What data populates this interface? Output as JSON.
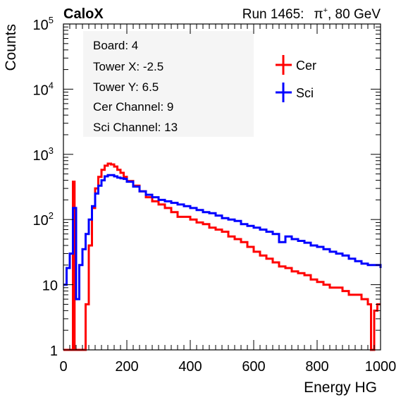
{
  "header": {
    "left": "CaloX",
    "run": "Run 1465:",
    "particle": "π",
    "charge": "+",
    "energy": ", 80 GeV"
  },
  "info_box": {
    "lines": [
      "Board: 4",
      "Tower X: -2.5",
      "Tower Y: 6.5",
      "Cer Channel: 9",
      "Sci Channel: 13"
    ]
  },
  "colors": {
    "cer": "#ff0000",
    "sci": "#0000ff",
    "frame": "#000000"
  },
  "chart_data": {
    "type": "line",
    "xlabel": "Energy HG",
    "ylabel": "Counts",
    "xlim": [
      0,
      1000
    ],
    "ylim": [
      1,
      100000
    ],
    "y_log_scale": true,
    "grid": false,
    "legend_position": "top-right",
    "x_ticks": [
      0,
      200,
      400,
      600,
      800,
      1000
    ],
    "y_ticks": [
      {
        "value": 1,
        "label": "1"
      },
      {
        "value": 10,
        "label": "10"
      },
      {
        "value": 100,
        "label": "10",
        "exp": "2"
      },
      {
        "value": 1000,
        "label": "10",
        "exp": "3"
      },
      {
        "value": 10000,
        "label": "10",
        "exp": "4"
      },
      {
        "value": 100000,
        "label": "10",
        "exp": "5"
      }
    ],
    "series": [
      {
        "name": "Cer",
        "color": "#ff0000",
        "x": [
          0,
          10,
          20,
          25,
          30,
          35,
          40,
          50,
          60,
          70,
          80,
          90,
          100,
          110,
          120,
          130,
          140,
          150,
          160,
          170,
          180,
          190,
          200,
          220,
          240,
          260,
          280,
          300,
          320,
          340,
          360,
          380,
          400,
          420,
          440,
          460,
          480,
          500,
          520,
          540,
          560,
          580,
          600,
          620,
          640,
          660,
          680,
          700,
          720,
          740,
          760,
          780,
          800,
          820,
          840,
          860,
          880,
          900,
          920,
          940,
          960,
          970,
          980,
          990,
          1000
        ],
        "y": [
          1,
          1,
          1,
          1,
          380,
          1,
          1,
          1,
          1,
          5,
          40,
          150,
          300,
          450,
          580,
          670,
          720,
          700,
          650,
          580,
          520,
          450,
          390,
          330,
          270,
          220,
          190,
          170,
          150,
          130,
          110,
          110,
          100,
          90,
          85,
          75,
          70,
          65,
          55,
          50,
          45,
          38,
          32,
          28,
          25,
          22,
          19,
          18,
          16,
          15,
          14,
          12,
          11,
          10,
          9,
          9,
          8,
          7,
          7,
          6,
          5,
          1,
          4,
          5,
          5
        ]
      },
      {
        "name": "Sci",
        "color": "#0000ff",
        "x": [
          0,
          10,
          20,
          30,
          40,
          50,
          60,
          70,
          80,
          90,
          100,
          110,
          120,
          130,
          140,
          150,
          160,
          170,
          180,
          190,
          200,
          220,
          240,
          260,
          280,
          300,
          320,
          340,
          360,
          380,
          400,
          420,
          440,
          460,
          480,
          500,
          520,
          540,
          560,
          580,
          600,
          620,
          640,
          660,
          680,
          700,
          720,
          740,
          760,
          780,
          800,
          820,
          840,
          860,
          880,
          900,
          920,
          940,
          960,
          980,
          1000
        ],
        "y": [
          10,
          18,
          30,
          150,
          6,
          20,
          35,
          60,
          100,
          160,
          250,
          330,
          400,
          460,
          480,
          480,
          460,
          440,
          430,
          420,
          380,
          320,
          270,
          240,
          220,
          200,
          190,
          180,
          170,
          160,
          150,
          140,
          130,
          125,
          115,
          105,
          100,
          95,
          85,
          80,
          75,
          70,
          65,
          60,
          45,
          55,
          50,
          47,
          44,
          40,
          38,
          35,
          32,
          30,
          28,
          25,
          23,
          21,
          20,
          20,
          18
        ]
      }
    ]
  }
}
